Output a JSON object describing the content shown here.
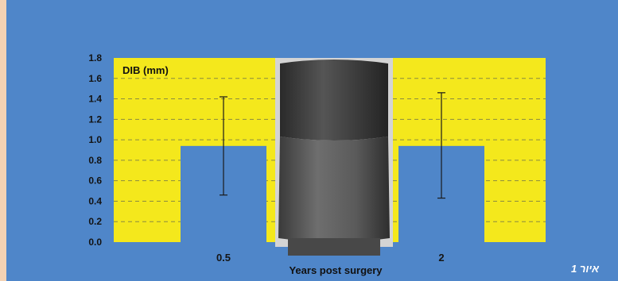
{
  "caption": "איור 1",
  "chart_data": {
    "type": "bar",
    "ylabel": "DIB (mm)",
    "xlabel": "Years post surgery",
    "categories": [
      "0.5",
      "2"
    ],
    "values": [
      0.94,
      0.94
    ],
    "error_bars": [
      {
        "low": 0.46,
        "high": 1.42
      },
      {
        "low": 0.43,
        "high": 1.46
      }
    ],
    "ylim": [
      0.0,
      1.8
    ],
    "yticks": [
      "0.0",
      "0.2",
      "0.4",
      "0.6",
      "0.8",
      "1.0",
      "1.2",
      "1.4",
      "1.6",
      "1.8"
    ],
    "grid": "dashed horizontal",
    "colors": {
      "plot_background": "#f4e81c",
      "bar": "#4f86c9",
      "panel_background": "#4f86c9",
      "page_background": "#f3d2b4",
      "grid": "#8a8a40"
    }
  }
}
